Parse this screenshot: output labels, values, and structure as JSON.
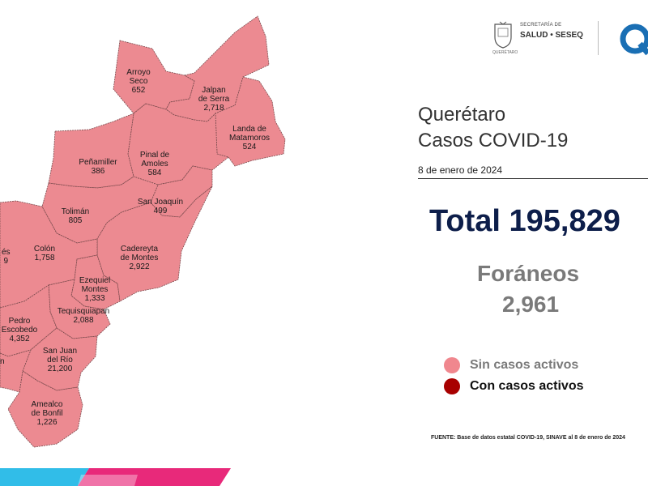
{
  "header": {
    "secretaria_small": "SECRETARÍA DE",
    "secretaria_big": "SALUD • SESEQ",
    "state_small": "QUERÉTARO"
  },
  "title": {
    "line1": "Querétaro",
    "line2": "Casos COVID-19",
    "date": "8 de enero de 2024"
  },
  "total": "Total 195,829",
  "foraneos": {
    "label": "Foráneos",
    "value": "2,961"
  },
  "legend": [
    {
      "label": "Sin casos activos",
      "color": "#f0878e",
      "text_color": "#7a7a7a"
    },
    {
      "label": "Con casos activos",
      "color": "#a80000",
      "text_color": "#111111"
    }
  ],
  "source": "FUENTE: Base de datos estatal  COVID-19,  SINAVE  al 8 de enero de 2024",
  "colors": {
    "map_fill": "#ec8a91",
    "map_border": "#7a4a4d",
    "title": "#333333",
    "total": "#0d1e4a",
    "foraneos": "#7a7a7a",
    "footer_cyan": "#31bde8",
    "footer_magenta": "#e8297a"
  },
  "municipalities": [
    {
      "name_lines": [
        "Arroyo",
        "Seco"
      ],
      "cases": "652"
    },
    {
      "name_lines": [
        "Jalpan",
        "de Serra"
      ],
      "cases": "2,718"
    },
    {
      "name_lines": [
        "Landa de",
        "Matamoros"
      ],
      "cases": "524"
    },
    {
      "name_lines": [
        "Peñamiller"
      ],
      "cases": "386"
    },
    {
      "name_lines": [
        "Pinal de",
        "Amoles"
      ],
      "cases": "584"
    },
    {
      "name_lines": [
        "San Joaquín"
      ],
      "cases": "499"
    },
    {
      "name_lines": [
        "Tolimán"
      ],
      "cases": "805"
    },
    {
      "name_lines": [
        "Colón"
      ],
      "cases": "1,758"
    },
    {
      "name_lines": [
        "Cadereyta",
        "de Montes"
      ],
      "cases": "2,922"
    },
    {
      "name_lines": [
        "Ezequiel",
        "Montes"
      ],
      "cases": "1,333"
    },
    {
      "name_lines": [
        "Tequisquiapan"
      ],
      "cases": "2,088"
    },
    {
      "name_lines": [
        "Pedro",
        "Escobedo"
      ],
      "cases": "4,352"
    },
    {
      "name_lines": [
        "San Juan",
        "del Río"
      ],
      "cases": "21,200"
    },
    {
      "name_lines": [
        "Amealco",
        "de Bonfil"
      ],
      "cases": "1,226"
    },
    {
      "name_lines": [
        "és"
      ],
      "cases": "9"
    },
    {
      "name_lines": [
        "n"
      ],
      "cases": ""
    }
  ]
}
